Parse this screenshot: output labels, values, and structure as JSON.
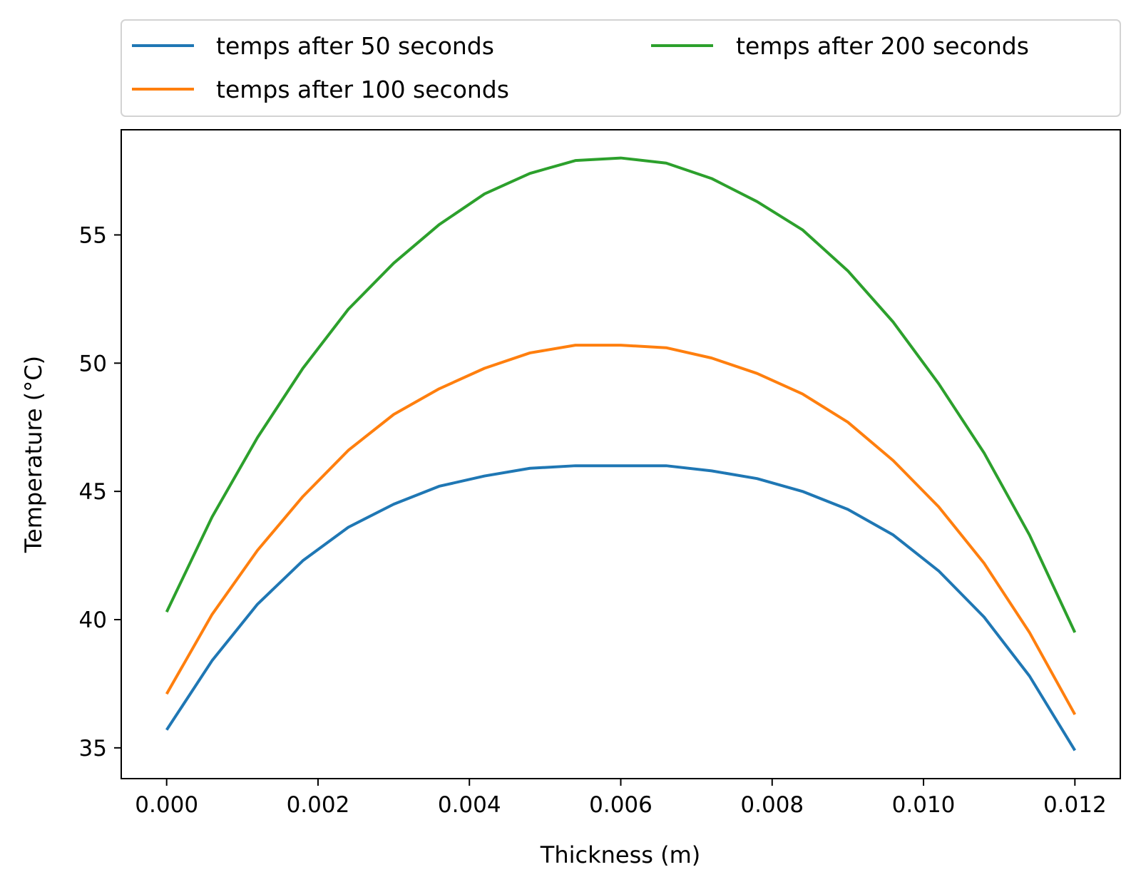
{
  "chart_data": {
    "type": "line",
    "title": "",
    "xlabel": "Thickness (m)",
    "ylabel": "Temperature (°C)",
    "xlim": [
      -0.0006,
      0.0126
    ],
    "ylim": [
      33.8,
      59.1
    ],
    "x_ticks": [
      0.0,
      0.002,
      0.004,
      0.006,
      0.008,
      0.01,
      0.012
    ],
    "x_tick_labels": [
      "0.000",
      "0.002",
      "0.004",
      "0.006",
      "0.008",
      "0.010",
      "0.012"
    ],
    "y_ticks": [
      35,
      40,
      45,
      50,
      55
    ],
    "y_tick_labels": [
      "35",
      "40",
      "45",
      "50",
      "55"
    ],
    "grid": false,
    "legend": {
      "placement": "top, above plot",
      "columns": 2
    },
    "x": [
      0.0,
      0.0006,
      0.0012,
      0.0018,
      0.0024,
      0.003,
      0.0036,
      0.0042,
      0.0048,
      0.0054,
      0.006,
      0.0066,
      0.0072,
      0.0078,
      0.0084,
      0.009,
      0.0096,
      0.0102,
      0.0108,
      0.0114,
      0.012
    ],
    "series": [
      {
        "name": "temps after 50 seconds",
        "color": "#1f77b4",
        "values": [
          35.7,
          38.4,
          40.6,
          42.3,
          43.6,
          44.5,
          45.2,
          45.6,
          45.9,
          46.0,
          46.0,
          46.0,
          45.8,
          45.5,
          45.0,
          44.3,
          43.3,
          41.9,
          40.1,
          37.8,
          34.9
        ]
      },
      {
        "name": "temps after 100 seconds",
        "color": "#ff7f0e",
        "values": [
          37.1,
          40.2,
          42.7,
          44.8,
          46.6,
          48.0,
          49.0,
          49.8,
          50.4,
          50.7,
          50.7,
          50.6,
          50.2,
          49.6,
          48.8,
          47.7,
          46.2,
          44.4,
          42.2,
          39.5,
          36.3
        ]
      },
      {
        "name": "temps after 200 seconds",
        "color": "#2ca02c",
        "values": [
          40.3,
          44.0,
          47.1,
          49.8,
          52.1,
          53.9,
          55.4,
          56.6,
          57.4,
          57.9,
          58.0,
          57.8,
          57.2,
          56.3,
          55.2,
          53.6,
          51.6,
          49.2,
          46.5,
          43.3,
          39.5
        ]
      }
    ]
  }
}
